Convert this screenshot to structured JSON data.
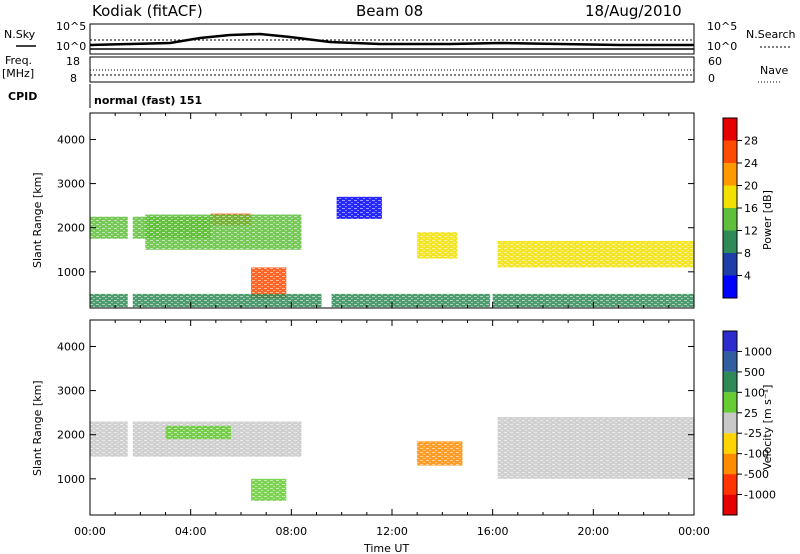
{
  "header": {
    "station": "Kodiak (fitACF)",
    "beam": "Beam 08",
    "date": "18/Aug/2010"
  },
  "strips": {
    "nsky_label": "N.Sky",
    "nsearch_label": "N.Search",
    "noise_ticks": [
      "10^5",
      "10^0"
    ],
    "freq_label": "Freq.",
    "freq_unit": "[MHz]",
    "freq_ticks": [
      "18",
      "8"
    ],
    "nave_label": "Nave",
    "nave_ticks": [
      "60",
      "0"
    ],
    "cpid_label": "CPID",
    "cpid_value": "normal (fast) 151"
  },
  "axes": {
    "ylabel": "Slant Range [km]",
    "yticks": [
      "4000",
      "3000",
      "2000",
      "1000"
    ],
    "xlabel": "Time UT",
    "xticks": [
      "00:00",
      "04:00",
      "08:00",
      "12:00",
      "16:00",
      "20:00",
      "00:00"
    ]
  },
  "colorbars": {
    "power": {
      "label": "Power [dB]",
      "ticks": [
        "28",
        "24",
        "20",
        "16",
        "12",
        "8",
        "4"
      ],
      "colors": [
        "#e60000",
        "#ff4b00",
        "#ff9900",
        "#f2e000",
        "#5fbf3a",
        "#2e8b57",
        "#1f3fa8",
        "#0000ff"
      ]
    },
    "velocity": {
      "label": "Velocity [m s⁻¹]",
      "ticks": [
        "1000",
        "500",
        "100",
        "25",
        "-25",
        "-100",
        "-500",
        "-1000"
      ],
      "colors": [
        "#2c2ccc",
        "#2f5fa0",
        "#2e8b57",
        "#66cc33",
        "#c8c8c8",
        "#ffd400",
        "#ff8c00",
        "#ff3300",
        "#e60000"
      ]
    }
  },
  "chart_data": [
    {
      "type": "heatmap",
      "quantity": "Power",
      "unit": "dB",
      "x_range_hours_UT": [
        0,
        24
      ],
      "y_range_km": [
        180,
        4600
      ],
      "color_range": [
        0,
        32
      ],
      "regions": [
        {
          "t_start": 0.0,
          "t_end": 4.8,
          "r_start": 1750,
          "r_end": 2250,
          "value": 18
        },
        {
          "t_start": 4.8,
          "t_end": 6.4,
          "r_start": 2050,
          "r_end": 2320,
          "value": 28
        },
        {
          "t_start": 6.4,
          "t_end": 7.8,
          "r_start": 400,
          "r_end": 1100,
          "value": 30
        },
        {
          "t_start": 2.2,
          "t_end": 8.4,
          "r_start": 1500,
          "r_end": 2300,
          "value": 16
        },
        {
          "t_start": 9.8,
          "t_end": 11.6,
          "r_start": 2200,
          "r_end": 2700,
          "value": 6
        },
        {
          "t_start": 13.0,
          "t_end": 14.6,
          "r_start": 1300,
          "r_end": 1900,
          "value": 22
        },
        {
          "t_start": 16.2,
          "t_end": 24.0,
          "r_start": 1100,
          "r_end": 1700,
          "value": 20
        },
        {
          "t_start": 0.0,
          "t_end": 24.0,
          "r_start": 200,
          "r_end": 500,
          "value": 14
        }
      ]
    },
    {
      "type": "heatmap",
      "quantity": "Velocity",
      "unit": "m s-1",
      "x_range_hours_UT": [
        0,
        24
      ],
      "y_range_km": [
        180,
        4600
      ],
      "color_range": [
        -1000,
        1000
      ],
      "regions": [
        {
          "t_start": 0.0,
          "t_end": 8.4,
          "r_start": 1500,
          "r_end": 2300,
          "value": 0
        },
        {
          "t_start": 3.0,
          "t_end": 5.6,
          "r_start": 1900,
          "r_end": 2200,
          "value": 60
        },
        {
          "t_start": 6.4,
          "t_end": 7.8,
          "r_start": 500,
          "r_end": 1000,
          "value": 60
        },
        {
          "t_start": 13.0,
          "t_end": 14.8,
          "r_start": 1300,
          "r_end": 1850,
          "value": -300
        },
        {
          "t_start": 16.2,
          "t_end": 24.0,
          "r_start": 1000,
          "r_end": 2400,
          "value": 0
        }
      ]
    }
  ]
}
